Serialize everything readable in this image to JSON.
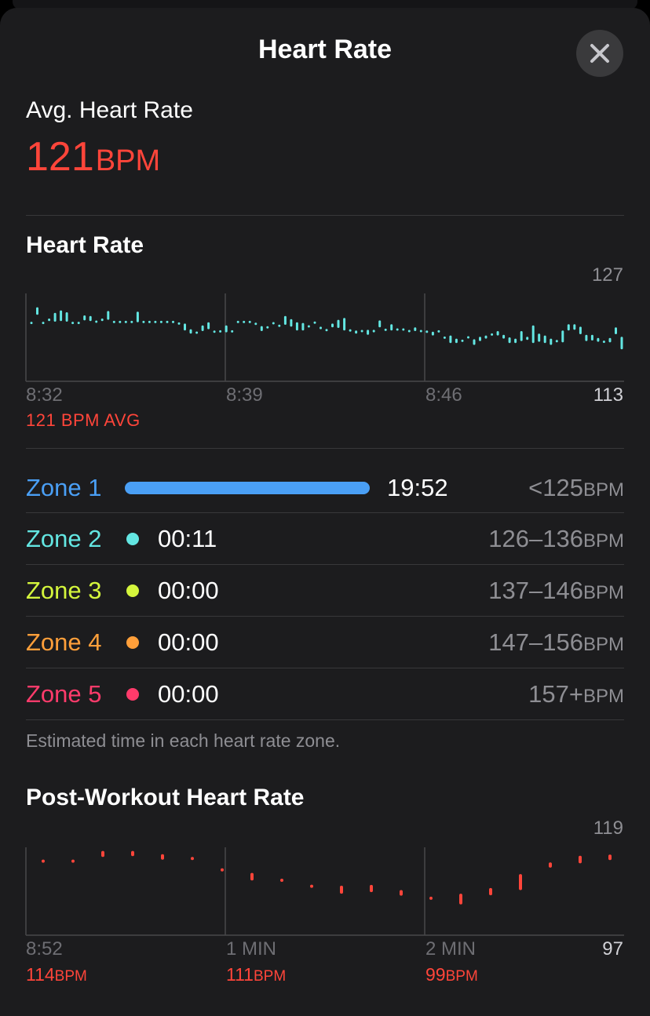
{
  "header": {
    "title": "Heart Rate"
  },
  "summary": {
    "label": "Avg. Heart Rate",
    "value": "121",
    "unit": "BPM"
  },
  "heart_rate_section": {
    "title": "Heart Rate",
    "y_max": "127",
    "y_min": "113",
    "x_labels": [
      "8:32",
      "8:39",
      "8:46"
    ],
    "avg_caption": "121 BPM AVG"
  },
  "zones": [
    {
      "name": "Zone 1",
      "time": "19:52",
      "range": "<125",
      "unit": "BPM",
      "color": "#4a9ff5",
      "share": 1.0
    },
    {
      "name": "Zone 2",
      "time": "00:11",
      "range": "126–136",
      "unit": "BPM",
      "color": "#63e6e2"
    },
    {
      "name": "Zone 3",
      "time": "00:00",
      "range": "137–146",
      "unit": "BPM",
      "color": "#d4f53c"
    },
    {
      "name": "Zone 4",
      "time": "00:00",
      "range": "147–156",
      "unit": "BPM",
      "color": "#ff9f3a"
    },
    {
      "name": "Zone 5",
      "time": "00:00",
      "range": "157+",
      "unit": "BPM",
      "color": "#ff3b6b"
    }
  ],
  "zones_note": "Estimated time in each heart rate zone.",
  "post_section": {
    "title": "Post-Workout Heart Rate",
    "y_max": "119",
    "y_min": "97",
    "x_labels": [
      "8:52",
      "1 MIN",
      "2 MIN"
    ],
    "values": [
      {
        "value": "114",
        "unit": "BPM"
      },
      {
        "value": "111",
        "unit": "BPM"
      },
      {
        "value": "99",
        "unit": "BPM"
      }
    ]
  },
  "chart_data": [
    {
      "type": "range-bar",
      "title": "Heart Rate",
      "color": "#63e6e2",
      "ylim": [
        113,
        127
      ],
      "x_ticks": [
        "8:32",
        "8:39",
        "8:46"
      ],
      "avg": 121,
      "ranges": [
        [
          122.3,
          122.3
        ],
        [
          123.6,
          124.8
        ],
        [
          122.3,
          122.3
        ],
        [
          122.6,
          123.0
        ],
        [
          122.5,
          123.9
        ],
        [
          122.6,
          124.3
        ],
        [
          122.5,
          124.0
        ],
        [
          122.3,
          122.3
        ],
        [
          122.3,
          122.3
        ],
        [
          122.7,
          123.5
        ],
        [
          122.6,
          123.4
        ],
        [
          122.4,
          122.6
        ],
        [
          122.6,
          123.0
        ],
        [
          122.8,
          124.2
        ],
        [
          122.4,
          122.5
        ],
        [
          122.4,
          122.5
        ],
        [
          122.4,
          122.5
        ],
        [
          122.4,
          122.5
        ],
        [
          122.4,
          124.1
        ],
        [
          122.4,
          122.5
        ],
        [
          122.4,
          122.5
        ],
        [
          122.4,
          122.5
        ],
        [
          122.4,
          122.5
        ],
        [
          122.4,
          122.5
        ],
        [
          122.4,
          122.5
        ],
        [
          122.1,
          122.3
        ],
        [
          121.1,
          122.2
        ],
        [
          120.6,
          121.3
        ],
        [
          120.7,
          120.8
        ],
        [
          121.0,
          121.9
        ],
        [
          121.3,
          122.4
        ],
        [
          120.8,
          121.0
        ],
        [
          120.9,
          121.0
        ],
        [
          120.8,
          121.9
        ],
        [
          120.9,
          121.0
        ],
        [
          122.4,
          122.5
        ],
        [
          122.4,
          122.5
        ],
        [
          122.4,
          122.5
        ],
        [
          122.1,
          122.2
        ],
        [
          121.0,
          121.8
        ],
        [
          121.5,
          121.7
        ],
        [
          122.1,
          122.4
        ],
        [
          121.7,
          122.0
        ],
        [
          122.0,
          123.4
        ],
        [
          121.7,
          122.9
        ],
        [
          121.1,
          122.4
        ],
        [
          121.1,
          122.3
        ],
        [
          121.7,
          121.8
        ],
        [
          122.3,
          122.4
        ],
        [
          121.3,
          121.7
        ],
        [
          121.0,
          121.3
        ],
        [
          121.6,
          122.2
        ],
        [
          121.5,
          122.8
        ],
        [
          121.1,
          123.1
        ],
        [
          120.9,
          121.3
        ],
        [
          120.6,
          121.1
        ],
        [
          120.9,
          121.1
        ],
        [
          120.4,
          121.2
        ],
        [
          120.8,
          121.2
        ],
        [
          121.6,
          122.7
        ],
        [
          121.1,
          121.3
        ],
        [
          121.1,
          122.1
        ],
        [
          121.1,
          121.4
        ],
        [
          121.2,
          121.3
        ],
        [
          120.9,
          121.1
        ],
        [
          121.0,
          121.6
        ],
        [
          120.9,
          121.1
        ],
        [
          120.7,
          121.1
        ],
        [
          120.3,
          120.9
        ],
        [
          120.8,
          121.1
        ],
        [
          119.9,
          120.0
        ],
        [
          119.1,
          120.3
        ],
        [
          119.1,
          119.8
        ],
        [
          119.4,
          119.5
        ],
        [
          119.9,
          120.1
        ],
        [
          118.8,
          119.7
        ],
        [
          119.4,
          120.1
        ],
        [
          119.8,
          120.3
        ],
        [
          120.4,
          120.5
        ],
        [
          120.3,
          121.0
        ],
        [
          119.8,
          120.4
        ],
        [
          119.1,
          120.0
        ],
        [
          119.1,
          119.8
        ],
        [
          119.4,
          121.0
        ],
        [
          119.6,
          120.1
        ],
        [
          119.1,
          121.9
        ],
        [
          119.3,
          120.6
        ],
        [
          119.1,
          120.3
        ],
        [
          118.8,
          119.8
        ],
        [
          119.2,
          119.6
        ],
        [
          119.2,
          121.1
        ],
        [
          121.1,
          122.1
        ],
        [
          121.2,
          122.1
        ],
        [
          120.5,
          121.7
        ],
        [
          119.4,
          120.4
        ],
        [
          119.5,
          120.4
        ],
        [
          119.3,
          119.9
        ],
        [
          119.2,
          119.4
        ],
        [
          119.2,
          119.9
        ],
        [
          120.5,
          121.6
        ],
        [
          118.1,
          120.1
        ]
      ]
    },
    {
      "type": "range-bar",
      "title": "Post-Workout Heart Rate",
      "color": "#ff453a",
      "ylim": [
        97,
        119
      ],
      "x_ticks": [
        "8:52",
        "1 MIN",
        "2 MIN"
      ],
      "ranges": [
        [
          115.5,
          115.6
        ],
        [
          115.5,
          115.6
        ],
        [
          116.6,
          118.1
        ],
        [
          116.8,
          118.1
        ],
        [
          115.9,
          117.3
        ],
        [
          115.9,
          116.5
        ],
        [
          113.1,
          113.6
        ],
        [
          110.7,
          112.6
        ],
        [
          110.6,
          110.9
        ],
        [
          109.1,
          109.4
        ],
        [
          107.4,
          109.4
        ],
        [
          107.8,
          109.6
        ],
        [
          106.9,
          108.3
        ],
        [
          106.0,
          106.5
        ],
        [
          104.7,
          107.4
        ],
        [
          107.0,
          108.8
        ],
        [
          108.3,
          112.3
        ],
        [
          113.9,
          115.2
        ],
        [
          115.0,
          116.9
        ],
        [
          115.8,
          117.2
        ]
      ]
    }
  ]
}
